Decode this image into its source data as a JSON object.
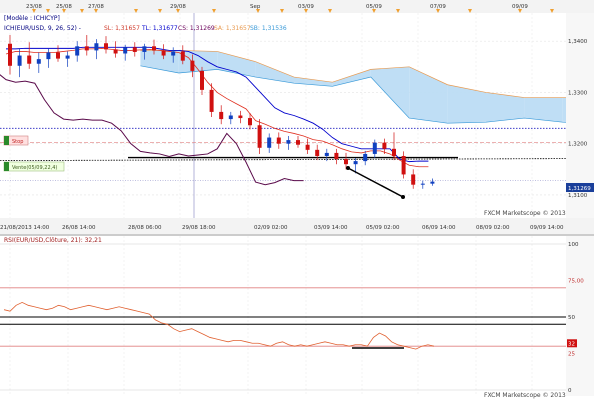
{
  "chart_data": [
    {
      "type": "candlestick",
      "legend": {
        "mode_label": "[Modèle : ICHICYP]",
        "ichimoku_label": "ICH(EUR/USD, 9, 26, 52) -",
        "sl": "SL: 1,31657",
        "tl": "TL: 1,31677",
        "cs": "CS: 1,31269",
        "sa": "SA: 1,31657",
        "sb": "SB: 1,31536"
      },
      "top_axis_labels": [
        "23/08",
        "25/08",
        "27/08",
        "29/08",
        "Sep",
        "03/09",
        "05/09",
        "07/09",
        "09/09"
      ],
      "x_labels": [
        "21/08/2013 14:00",
        "26/08 14:00",
        "28/08 06:00",
        "29/08 18:00",
        "02/09 02:00",
        "03/09 14:00",
        "05/09 02:00",
        "06/09 14:00",
        "08/09 02:00",
        "09/09 14:00"
      ],
      "y_ticks": [
        "1,3400",
        "1,3300",
        "1,3200",
        "1,3100"
      ],
      "ylim": [
        1.3055,
        1.3455
      ],
      "last_price_tag": "1,31269",
      "order_tags": [
        "Stop",
        "Vente(05/09,22,4)"
      ],
      "watermark": "FXCM Marketscope © 2013",
      "candles": [
        {
          "o": 1.3395,
          "h": 1.3412,
          "l": 1.3335,
          "c": 1.3352
        },
        {
          "o": 1.3352,
          "h": 1.3385,
          "l": 1.333,
          "c": 1.3372
        },
        {
          "o": 1.3372,
          "h": 1.3398,
          "l": 1.3346,
          "c": 1.3356
        },
        {
          "o": 1.3356,
          "h": 1.3378,
          "l": 1.3338,
          "c": 1.3365
        },
        {
          "o": 1.3365,
          "h": 1.3385,
          "l": 1.3348,
          "c": 1.3378
        },
        {
          "o": 1.3378,
          "h": 1.3392,
          "l": 1.336,
          "c": 1.3366
        },
        {
          "o": 1.3366,
          "h": 1.338,
          "l": 1.335,
          "c": 1.3372
        },
        {
          "o": 1.3372,
          "h": 1.34,
          "l": 1.336,
          "c": 1.339
        },
        {
          "o": 1.339,
          "h": 1.3412,
          "l": 1.3372,
          "c": 1.3382
        },
        {
          "o": 1.3382,
          "h": 1.3404,
          "l": 1.3365,
          "c": 1.3396
        },
        {
          "o": 1.3396,
          "h": 1.341,
          "l": 1.3376,
          "c": 1.3384
        },
        {
          "o": 1.3384,
          "h": 1.34,
          "l": 1.3368,
          "c": 1.3376
        },
        {
          "o": 1.3376,
          "h": 1.3393,
          "l": 1.3362,
          "c": 1.3388
        },
        {
          "o": 1.3388,
          "h": 1.3398,
          "l": 1.337,
          "c": 1.3379
        },
        {
          "o": 1.3379,
          "h": 1.3395,
          "l": 1.3364,
          "c": 1.339
        },
        {
          "o": 1.339,
          "h": 1.3403,
          "l": 1.3374,
          "c": 1.3382
        },
        {
          "o": 1.3382,
          "h": 1.3394,
          "l": 1.3365,
          "c": 1.3372
        },
        {
          "o": 1.3372,
          "h": 1.3388,
          "l": 1.3358,
          "c": 1.338
        },
        {
          "o": 1.338,
          "h": 1.3392,
          "l": 1.3355,
          "c": 1.3362
        },
        {
          "o": 1.3362,
          "h": 1.3374,
          "l": 1.333,
          "c": 1.3342
        },
        {
          "o": 1.3342,
          "h": 1.335,
          "l": 1.3295,
          "c": 1.3305
        },
        {
          "o": 1.3305,
          "h": 1.3318,
          "l": 1.3252,
          "c": 1.3262
        },
        {
          "o": 1.3262,
          "h": 1.3275,
          "l": 1.3238,
          "c": 1.3248
        },
        {
          "o": 1.3248,
          "h": 1.3262,
          "l": 1.3238,
          "c": 1.3255
        },
        {
          "o": 1.3255,
          "h": 1.3264,
          "l": 1.324,
          "c": 1.325
        },
        {
          "o": 1.325,
          "h": 1.326,
          "l": 1.3228,
          "c": 1.3236
        },
        {
          "o": 1.3236,
          "h": 1.3248,
          "l": 1.318,
          "c": 1.3192
        },
        {
          "o": 1.3192,
          "h": 1.322,
          "l": 1.3182,
          "c": 1.3212
        },
        {
          "o": 1.3212,
          "h": 1.3222,
          "l": 1.319,
          "c": 1.32
        },
        {
          "o": 1.32,
          "h": 1.3215,
          "l": 1.3188,
          "c": 1.3207
        },
        {
          "o": 1.3207,
          "h": 1.3215,
          "l": 1.3192,
          "c": 1.3198
        },
        {
          "o": 1.3198,
          "h": 1.321,
          "l": 1.318,
          "c": 1.3188
        },
        {
          "o": 1.3188,
          "h": 1.3198,
          "l": 1.3168,
          "c": 1.3176
        },
        {
          "o": 1.3176,
          "h": 1.319,
          "l": 1.3166,
          "c": 1.3182
        },
        {
          "o": 1.3182,
          "h": 1.319,
          "l": 1.316,
          "c": 1.317
        },
        {
          "o": 1.317,
          "h": 1.3182,
          "l": 1.315,
          "c": 1.316
        },
        {
          "o": 1.316,
          "h": 1.3172,
          "l": 1.3142,
          "c": 1.3166
        },
        {
          "o": 1.3166,
          "h": 1.3186,
          "l": 1.3158,
          "c": 1.318
        },
        {
          "o": 1.318,
          "h": 1.3208,
          "l": 1.3172,
          "c": 1.3202
        },
        {
          "o": 1.3202,
          "h": 1.321,
          "l": 1.318,
          "c": 1.319
        },
        {
          "o": 1.319,
          "h": 1.3222,
          "l": 1.3168,
          "c": 1.3176
        },
        {
          "o": 1.3176,
          "h": 1.3185,
          "l": 1.3132,
          "c": 1.314
        },
        {
          "o": 1.314,
          "h": 1.315,
          "l": 1.3112,
          "c": 1.312
        },
        {
          "o": 1.312,
          "h": 1.3128,
          "l": 1.3112,
          "c": 1.3122
        },
        {
          "o": 1.3122,
          "h": 1.3132,
          "l": 1.3118,
          "c": 1.3126
        }
      ],
      "tenkan": [
        1.3375,
        1.338,
        1.338,
        1.3378,
        1.3378,
        1.3378,
        1.338,
        1.3382,
        1.3385,
        1.3385,
        1.3386,
        1.3384,
        1.3382,
        1.3382,
        1.3383,
        1.3384,
        1.3382,
        1.338,
        1.3378,
        1.3368,
        1.3345,
        1.332,
        1.33,
        1.3288,
        1.3278,
        1.3268,
        1.3245,
        1.3238,
        1.323,
        1.3224,
        1.322,
        1.3215,
        1.3208,
        1.3205,
        1.3198,
        1.319,
        1.3184,
        1.3182,
        1.3186,
        1.3186,
        1.318,
        1.3168,
        1.3158,
        1.3155,
        1.3155
      ],
      "kijun": [
        1.3385,
        1.3385,
        1.3386,
        1.3386,
        1.3386,
        1.3386,
        1.3386,
        1.3386,
        1.3388,
        1.3388,
        1.3388,
        1.3388,
        1.3388,
        1.3388,
        1.3388,
        1.3388,
        1.3385,
        1.3382,
        1.3382,
        1.338,
        1.3372,
        1.336,
        1.335,
        1.3345,
        1.334,
        1.333,
        1.331,
        1.329,
        1.327,
        1.326,
        1.3255,
        1.3248,
        1.324,
        1.3228,
        1.3212,
        1.32,
        1.3195,
        1.319,
        1.319,
        1.319,
        1.319,
        1.317,
        1.3165,
        1.3166,
        1.3166
      ],
      "chikou": [
        1.3362,
        1.3345,
        1.335,
        1.334,
        1.3325,
        1.332,
        1.3322,
        1.3318,
        1.3286,
        1.326,
        1.3248,
        1.3246,
        1.3248,
        1.3246,
        1.3246,
        1.324,
        1.3225,
        1.32,
        1.3185,
        1.3182,
        1.318,
        1.3175,
        1.318,
        1.3176,
        1.3178,
        1.318,
        1.319,
        1.322,
        1.32,
        1.3164,
        1.3125,
        1.312,
        1.3124,
        1.3132,
        1.3128,
        1.3128
      ],
      "cloud_x": [
        14,
        18,
        22,
        26,
        30,
        34,
        38,
        42,
        46,
        50,
        54,
        58,
        62,
        66,
        70
      ],
      "senkou_a": [
        1.3382,
        1.3382,
        1.338,
        1.336,
        1.333,
        1.332,
        1.3345,
        1.335,
        1.3315,
        1.33,
        1.329,
        1.329,
        1.329,
        1.328,
        1.3275
      ],
      "senkou_b": [
        1.3352,
        1.3338,
        1.3345,
        1.333,
        1.3318,
        1.3312,
        1.333,
        1.325,
        1.324,
        1.3242,
        1.325,
        1.3242,
        1.3238,
        1.3232,
        1.323
      ],
      "levels": {
        "resistance": 1.323,
        "stop": 1.3202,
        "sell": 1.3167,
        "lower_dotted": 1.3128
      }
    },
    {
      "type": "line",
      "title": "RSI(EUR/USD,Clôture, 21): 32,21",
      "y_ticks": [
        "100",
        "75,00",
        "50",
        "32",
        "25",
        "0"
      ],
      "ylim": [
        0,
        100
      ],
      "levels": {
        "upper": 70,
        "mid": 50,
        "low1": 45,
        "low2": 30
      },
      "series": [
        {
          "values": [
            55,
            54,
            58,
            60,
            58,
            57,
            56,
            55,
            56,
            58,
            57,
            55,
            56,
            57,
            58,
            57,
            56,
            55,
            56,
            57,
            56,
            55,
            54,
            53,
            52,
            48,
            46,
            45,
            42,
            40,
            41,
            42,
            40,
            38,
            36,
            35,
            34,
            33,
            34,
            34,
            33,
            32,
            32,
            31,
            30,
            32,
            33,
            31,
            30,
            31,
            30,
            31,
            32,
            33,
            32,
            31,
            31,
            30,
            31,
            31,
            30,
            36,
            39,
            37,
            33,
            31,
            30,
            29,
            28,
            30,
            31,
            30
          ]
        }
      ],
      "watermark": "FXCM Marketscope © 2013"
    }
  ]
}
